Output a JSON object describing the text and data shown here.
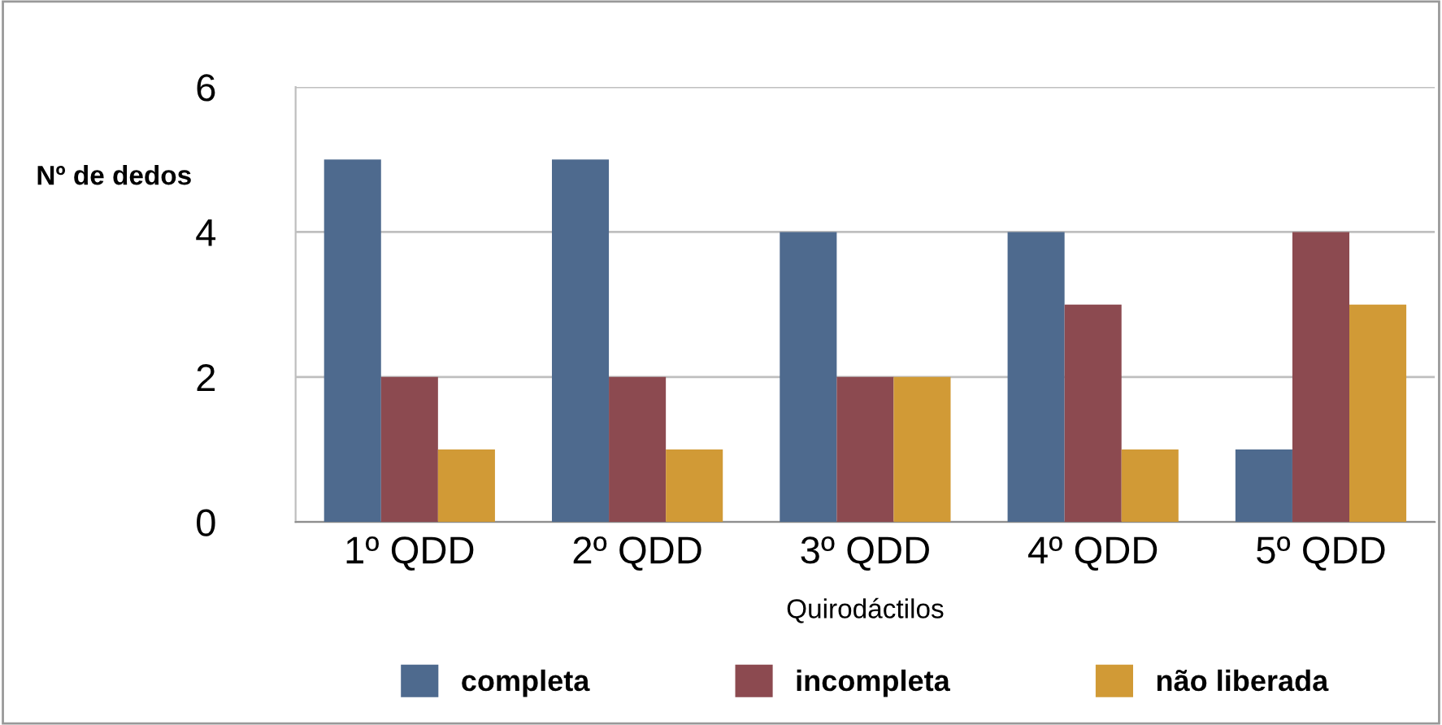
{
  "chart_data": {
    "type": "bar",
    "xlabel": "Quirodáctilos",
    "ylabel": "Nº de dedos",
    "categories": [
      "1º QDD",
      "2º QDD",
      "3º QDD",
      "4º QDD",
      "5º QDD"
    ],
    "series": [
      {
        "name": "completa",
        "color": "#4e6a8e",
        "values": [
          5,
          5,
          4,
          4,
          1
        ]
      },
      {
        "name": "incompleta",
        "color": "#8c4a50",
        "values": [
          2,
          2,
          2,
          3,
          4
        ]
      },
      {
        "name": "não liberada",
        "color": "#d19a36",
        "values": [
          1,
          1,
          2,
          1,
          3
        ]
      }
    ],
    "ylim": [
      0,
      6
    ],
    "yticks": [
      0,
      2,
      4,
      6
    ],
    "grid": "y",
    "legend": "bottom"
  }
}
